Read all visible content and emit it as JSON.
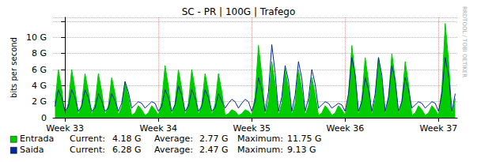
{
  "chart_data": {
    "type": "line",
    "title": "SC - PR | 100G | Trafego",
    "ylabel": "bits per second",
    "annotations": [
      "RRDTOOL / TOBI OETIKER"
    ],
    "x": [
      -0.75,
      -0.5,
      -0.25,
      0,
      0.25,
      0.5,
      0.75,
      1,
      1.25,
      1.5,
      1.75,
      2,
      2.25,
      2.5,
      2.75,
      3,
      3.25,
      3.5,
      3.75,
      4,
      4.25,
      4.5,
      4.75,
      5,
      5.25,
      5.5,
      5.75,
      6,
      6.25,
      6.5,
      6.75,
      7,
      7.25,
      7.5,
      7.75,
      8,
      8.25,
      8.5,
      8.75,
      9,
      9.25,
      9.5,
      9.75,
      10,
      10.25,
      10.5,
      10.75,
      11,
      11.25,
      11.5,
      11.75,
      12,
      12.25,
      12.5,
      12.75,
      13,
      13.25,
      13.5,
      13.75,
      14,
      14.25,
      14.5,
      14.75,
      15,
      15.25,
      15.5,
      15.75,
      16,
      16.25,
      16.5,
      16.75,
      17,
      17.25,
      17.5,
      17.75,
      18,
      18.25,
      18.5,
      18.75,
      19,
      19.25,
      19.5,
      19.75,
      20,
      20.25,
      20.5,
      20.75,
      21,
      21.25,
      21.5,
      21.75,
      22,
      22.25,
      22.5,
      22.75,
      23,
      23.25,
      23.5,
      23.75,
      24,
      24.25,
      24.5,
      24.75,
      25,
      25.25,
      25.5,
      25.75,
      26,
      26.25,
      26.5,
      26.75,
      27,
      27.25,
      27.5,
      27.75,
      28,
      28.25,
      28.5,
      28.75,
      29,
      29.25
    ],
    "series": [
      {
        "name": "Entrada",
        "type": "area",
        "color": "#00cc00",
        "values": [
          1.8,
          6.0,
          3.6,
          0.3,
          1.8,
          6.0,
          3.6,
          0.3,
          1.7,
          5.5,
          3.3,
          0.3,
          1.7,
          5.5,
          3.3,
          0.3,
          1.5,
          5.0,
          3.0,
          0.3,
          1.4,
          4.5,
          2.7,
          0.3,
          0.6,
          1.5,
          1.0,
          0.3,
          0.6,
          1.5,
          1.0,
          0.3,
          2.0,
          6.5,
          3.9,
          0.3,
          1.8,
          6.0,
          3.6,
          0.3,
          1.8,
          6.0,
          3.6,
          0.3,
          1.7,
          5.5,
          3.3,
          0.3,
          1.7,
          5.5,
          3.3,
          0.3,
          0.5,
          1.0,
          0.8,
          0.3,
          0.5,
          1.0,
          0.8,
          0.3,
          2.7,
          9.0,
          5.4,
          0.3,
          2.1,
          7.0,
          4.2,
          0.3,
          1.8,
          6.0,
          3.6,
          0.3,
          1.8,
          6.0,
          3.6,
          0.3,
          1.5,
          5.0,
          3.0,
          0.3,
          0.6,
          1.5,
          1.0,
          0.3,
          0.6,
          1.5,
          1.0,
          0.3,
          2.7,
          9.0,
          5.4,
          0.3,
          2.3,
          7.5,
          4.5,
          0.3,
          2.3,
          7.5,
          4.5,
          0.3,
          2.4,
          8.0,
          4.8,
          0.3,
          2.1,
          7.0,
          4.2,
          0.3,
          0.6,
          1.5,
          1.0,
          0.3,
          0.6,
          1.5,
          1.0,
          0.3,
          3.5,
          11.75,
          7.1,
          0.3,
          2.4
        ],
        "stats": [
          {
            "name": "Current:",
            "value": 4.18,
            "label": "4.18 G"
          },
          {
            "name": "Average:",
            "value": 2.77,
            "label": "2.77 G"
          },
          {
            "name": "Maximum:",
            "value": 11.75,
            "label": "11.75 G"
          }
        ]
      },
      {
        "name": "Saida",
        "type": "line",
        "color": "#002a97",
        "values": [
          1.4,
          3.5,
          2.5,
          0.8,
          1.4,
          3.5,
          2.5,
          0.8,
          1.4,
          3.5,
          2.5,
          0.8,
          1.2,
          3.0,
          2.1,
          0.8,
          1.2,
          3.0,
          2.1,
          0.8,
          1.8,
          4.5,
          3.2,
          1.2,
          1.6,
          2.0,
          1.8,
          1.2,
          1.6,
          2.0,
          1.8,
          0.8,
          1.4,
          3.5,
          2.5,
          0.8,
          1.6,
          4.0,
          2.8,
          0.8,
          1.4,
          3.5,
          2.5,
          0.8,
          1.4,
          3.5,
          2.5,
          0.8,
          1.2,
          3.0,
          2.1,
          1.2,
          1.8,
          2.3,
          2.0,
          1.2,
          1.8,
          2.3,
          2.0,
          0.8,
          2.0,
          5.0,
          3.5,
          0.8,
          3.2,
          9.1,
          5.6,
          0.8,
          2.6,
          6.5,
          4.6,
          0.8,
          2.8,
          7.0,
          4.9,
          0.8,
          2.4,
          6.0,
          4.2,
          1.2,
          1.6,
          2.0,
          1.8,
          1.2,
          1.5,
          1.8,
          1.6,
          0.8,
          3.0,
          7.5,
          5.3,
          0.8,
          2.0,
          5.0,
          3.5,
          0.8,
          3.0,
          7.5,
          5.3,
          0.8,
          2.6,
          6.5,
          4.6,
          0.8,
          2.0,
          5.0,
          3.5,
          1.2,
          1.6,
          2.0,
          1.8,
          1.2,
          1.6,
          2.0,
          1.8,
          0.8,
          3.0,
          7.5,
          5.3,
          0.8,
          3.0
        ],
        "stats": [
          {
            "name": "Current:",
            "value": 6.28,
            "label": "6.28 G"
          },
          {
            "name": "Average:",
            "value": 2.47,
            "label": "2.47 G"
          },
          {
            "name": "Maximum:",
            "value": 9.13,
            "label": "9.13 G"
          }
        ]
      }
    ],
    "xlim": [
      -0.9,
      29.4
    ],
    "xticks": [
      {
        "value": 0,
        "label": "Week 33"
      },
      {
        "value": 7,
        "label": "Week 34"
      },
      {
        "value": 14,
        "label": "Week 35"
      },
      {
        "value": 21,
        "label": "Week 36"
      },
      {
        "value": 28,
        "label": "Week 37"
      }
    ],
    "ylim": [
      0,
      12.5
    ],
    "yticks": [
      0,
      {
        "value": 2,
        "label": "2 G"
      },
      {
        "value": 4,
        "label": "4 G"
      },
      {
        "value": 6,
        "label": "6 G"
      },
      {
        "value": 8,
        "label": "8 G"
      },
      {
        "value": 10,
        "label": "10 G"
      }
    ],
    "grid": true
  }
}
